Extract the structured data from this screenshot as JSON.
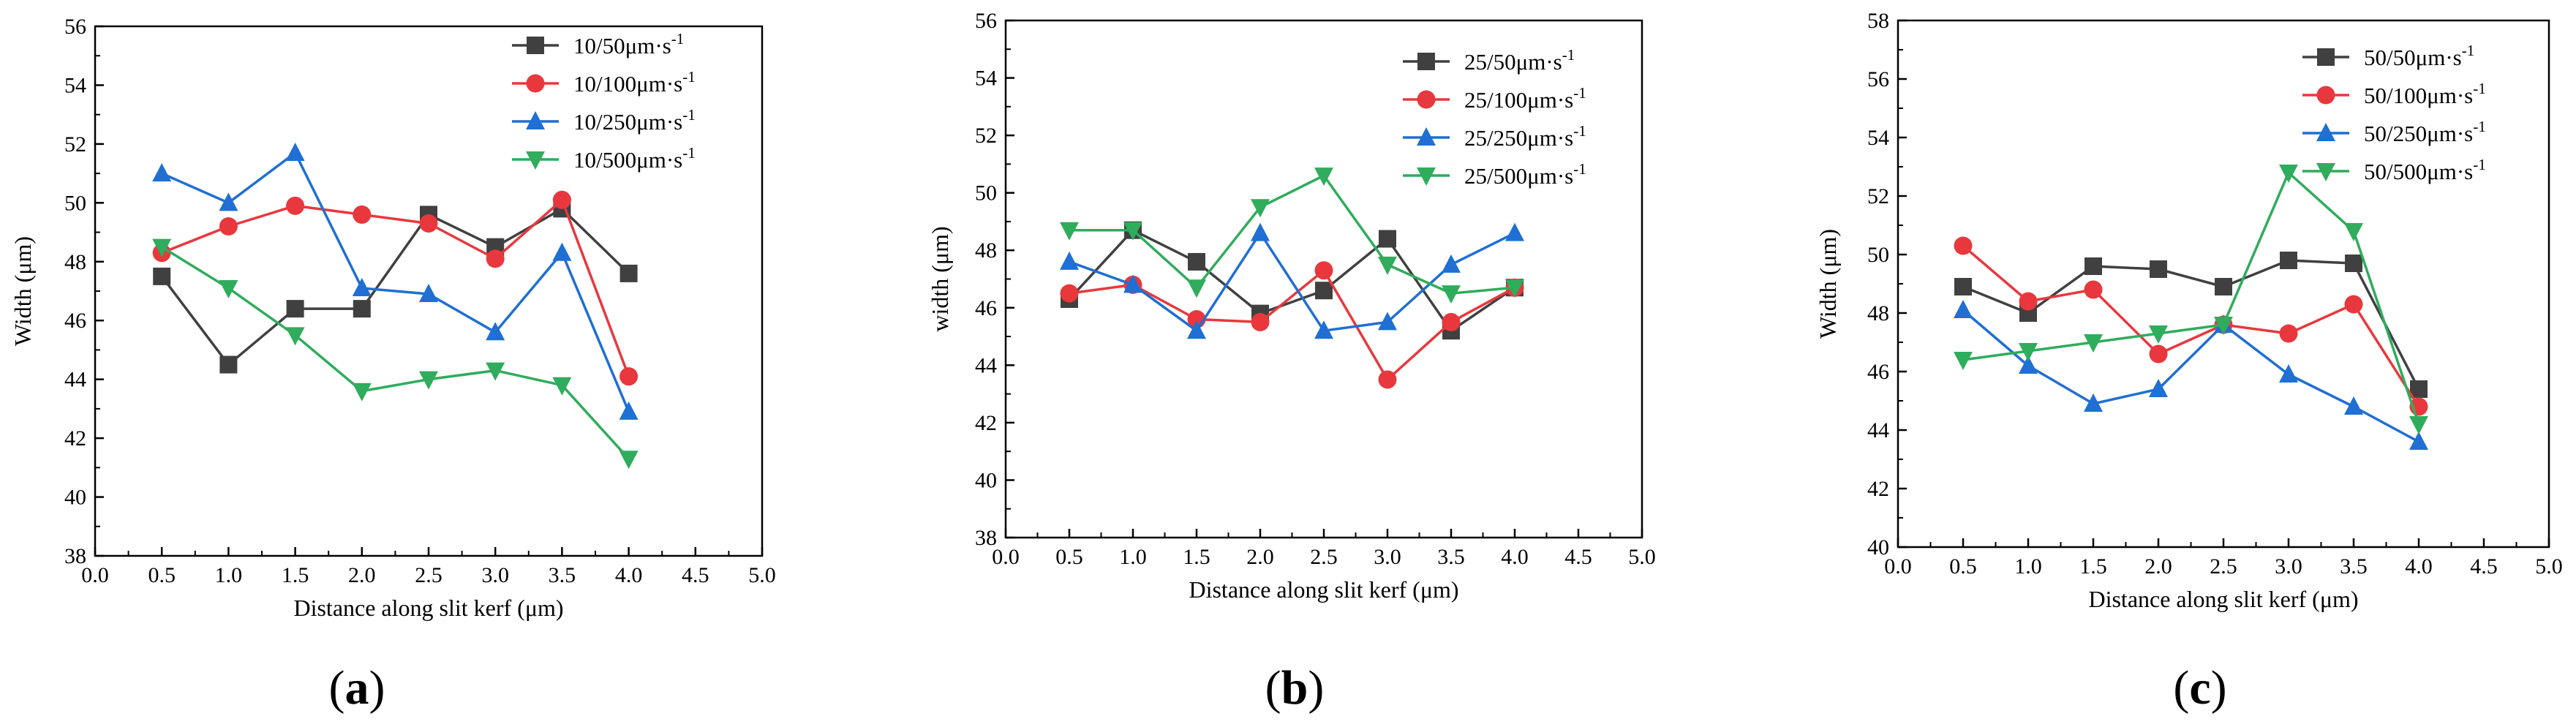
{
  "chart_data": [
    {
      "type": "line",
      "panel_label": "(a)",
      "xlabel": "Distance along slit kerf (μm)",
      "ylabel": "Width (μm)",
      "xlim": [
        0,
        5
      ],
      "ylim": [
        38,
        56
      ],
      "x_ticks": [
        "0.0",
        "0.5",
        "1.0",
        "1.5",
        "2.0",
        "2.5",
        "3.0",
        "3.5",
        "4.0",
        "4.5",
        "5.0"
      ],
      "y_ticks": [
        "38",
        "40",
        "42",
        "44",
        "46",
        "48",
        "50",
        "52",
        "54",
        "56"
      ],
      "legend_position": "top-right",
      "x": [
        0.5,
        1.0,
        1.5,
        2.0,
        2.5,
        3.0,
        3.5,
        4.0
      ],
      "series": [
        {
          "name": "10/50μm·s",
          "sup": "-1",
          "color": "#404040",
          "marker": "square",
          "values": [
            47.5,
            44.5,
            46.4,
            46.4,
            49.6,
            48.5,
            49.8,
            47.6
          ]
        },
        {
          "name": "10/100μm·s",
          "sup": "-1",
          "color": "#e8383d",
          "marker": "circle",
          "values": [
            48.3,
            49.2,
            49.9,
            49.6,
            49.3,
            48.1,
            50.1,
            44.1
          ]
        },
        {
          "name": "10/250μm·s",
          "sup": "-1",
          "color": "#1f6fd4",
          "marker": "triangle-up",
          "values": [
            51.0,
            50.0,
            51.7,
            47.1,
            46.9,
            45.6,
            48.3,
            42.9
          ]
        },
        {
          "name": "10/500μm·s",
          "sup": "-1",
          "color": "#2fac5c",
          "marker": "triangle-down",
          "values": [
            48.5,
            47.1,
            45.5,
            43.6,
            44.0,
            44.3,
            43.8,
            41.3
          ]
        }
      ]
    },
    {
      "type": "line",
      "panel_label": "(b)",
      "xlabel": "Distance along slit kerf (μm)",
      "ylabel": "width (μm)",
      "xlim": [
        0,
        5
      ],
      "ylim": [
        38,
        56
      ],
      "x_ticks": [
        "0.0",
        "0.5",
        "1.0",
        "1.5",
        "2.0",
        "2.5",
        "3.0",
        "3.5",
        "4.0",
        "4.5",
        "5.0"
      ],
      "y_ticks": [
        "38",
        "40",
        "42",
        "44",
        "46",
        "48",
        "50",
        "52",
        "54",
        "56"
      ],
      "legend_position": "top-right",
      "x": [
        0.5,
        1.0,
        1.5,
        2.0,
        2.5,
        3.0,
        3.5,
        4.0
      ],
      "series": [
        {
          "name": "25/50μm·s",
          "sup": "-1",
          "color": "#404040",
          "marker": "square",
          "values": [
            46.3,
            48.7,
            47.6,
            45.8,
            46.6,
            48.4,
            45.2,
            46.7
          ]
        },
        {
          "name": "25/100μm·s",
          "sup": "-1",
          "color": "#e8383d",
          "marker": "circle",
          "values": [
            46.5,
            46.8,
            45.6,
            45.5,
            47.3,
            43.5,
            45.5,
            46.7
          ]
        },
        {
          "name": "25/250μm·s",
          "sup": "-1",
          "color": "#1f6fd4",
          "marker": "triangle-up",
          "values": [
            47.6,
            46.8,
            45.2,
            48.6,
            45.2,
            45.5,
            47.5,
            48.6
          ]
        },
        {
          "name": "25/500μm·s",
          "sup": "-1",
          "color": "#2fac5c",
          "marker": "triangle-down",
          "values": [
            48.7,
            48.7,
            46.7,
            49.5,
            50.6,
            47.5,
            46.5,
            46.7
          ]
        }
      ]
    },
    {
      "type": "line",
      "panel_label": "(c)",
      "xlabel": "Distance along slit kerf (μm)",
      "ylabel": "Width (μm)",
      "xlim": [
        0,
        5
      ],
      "ylim": [
        40,
        58
      ],
      "x_ticks": [
        "0.0",
        "0.5",
        "1.0",
        "1.5",
        "2.0",
        "2.5",
        "3.0",
        "3.5",
        "4.0",
        "4.5",
        "5.0"
      ],
      "y_ticks": [
        "40",
        "42",
        "44",
        "46",
        "48",
        "50",
        "52",
        "54",
        "56",
        "58"
      ],
      "legend_position": "top-right",
      "x": [
        0.5,
        1.0,
        1.5,
        2.0,
        2.5,
        3.0,
        3.5,
        4.0
      ],
      "series": [
        {
          "name": "50/50μm·s",
          "sup": "-1",
          "color": "#404040",
          "marker": "square",
          "values": [
            48.9,
            48.0,
            49.6,
            49.5,
            48.9,
            49.8,
            49.7,
            45.4
          ]
        },
        {
          "name": "50/100μm·s",
          "sup": "-1",
          "color": "#e8383d",
          "marker": "circle",
          "values": [
            50.3,
            48.4,
            48.8,
            46.6,
            47.6,
            47.3,
            48.3,
            44.8
          ]
        },
        {
          "name": "50/250μm·s",
          "sup": "-1",
          "color": "#1f6fd4",
          "marker": "triangle-up",
          "values": [
            48.1,
            46.2,
            44.9,
            45.4,
            47.6,
            45.9,
            44.8,
            43.6
          ]
        },
        {
          "name": "50/500μm·s",
          "sup": "-1",
          "color": "#2fac5c",
          "marker": "triangle-down",
          "values": [
            46.4,
            46.7,
            47.0,
            47.3,
            47.6,
            52.8,
            50.8,
            44.2
          ]
        }
      ]
    }
  ]
}
